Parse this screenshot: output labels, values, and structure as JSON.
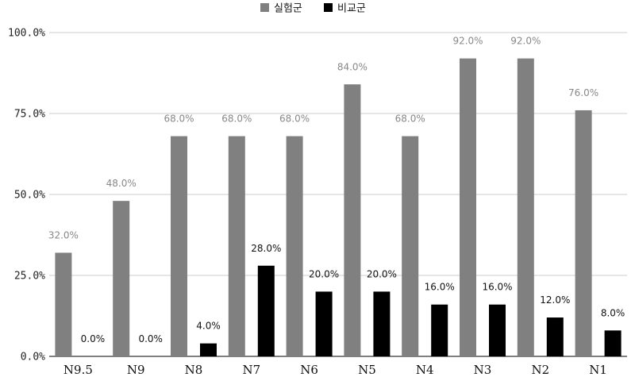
{
  "chart_data": {
    "type": "bar",
    "categories": [
      "N9.5",
      "N9",
      "N8",
      "N7",
      "N6",
      "N5",
      "N4",
      "N3",
      "N2",
      "N1"
    ],
    "series": [
      {
        "name": "실험군",
        "color": "#808080",
        "values": [
          32.0,
          48.0,
          68.0,
          68.0,
          68.0,
          84.0,
          68.0,
          92.0,
          92.0,
          76.0
        ],
        "labels": [
          "32.0%",
          "48.0%",
          "68.0%",
          "68.0%",
          "68.0%",
          "84.0%",
          "68.0%",
          "92.0%",
          "92.0%",
          "76.0%"
        ]
      },
      {
        "name": "비교군",
        "color": "#000000",
        "values": [
          0.0,
          0.0,
          4.0,
          28.0,
          20.0,
          20.0,
          16.0,
          16.0,
          12.0,
          8.0
        ],
        "labels": [
          "0.0%",
          "0.0%",
          "4.0%",
          "28.0%",
          "20.0%",
          "20.0%",
          "16.0%",
          "16.0%",
          "12.0%",
          "8.0%"
        ]
      }
    ],
    "ylim": [
      0,
      100
    ],
    "yticks": [
      0,
      25,
      50,
      75,
      100
    ],
    "ytick_labels": [
      "0.0%",
      "25.0%",
      "50.0%",
      "75.0%",
      "100.0%"
    ],
    "grid": true,
    "legend_position": "top-center"
  }
}
